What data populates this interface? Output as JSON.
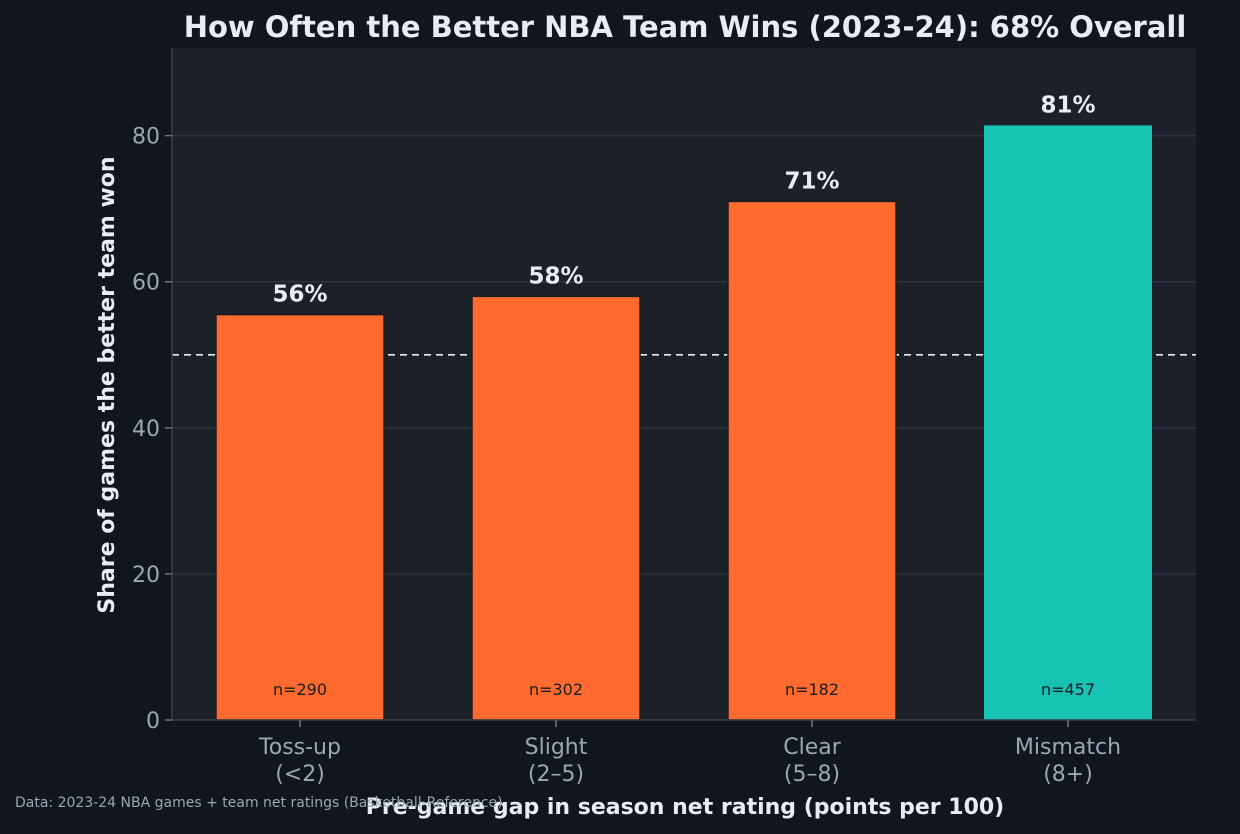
{
  "chart_data": {
    "type": "bar",
    "title": "How Often the Better NBA Team Wins (2023-24): 68% Overall",
    "xlabel": "Pre-game gap in season net rating (points per 100)",
    "ylabel": "Share of games the better team won",
    "ylim": [
      0,
      92
    ],
    "yticks": [
      0,
      20,
      40,
      60,
      80
    ],
    "reference_line": 50,
    "grid": true,
    "categories": [
      [
        "Toss-up",
        "(<2)"
      ],
      [
        "Slight",
        "(2–5)"
      ],
      [
        "Clear",
        "(5–8)"
      ],
      [
        "Mismatch",
        "(8+)"
      ]
    ],
    "values": [
      55.5,
      58,
      71,
      81.4
    ],
    "value_labels": [
      "56%",
      "58%",
      "71%",
      "81%"
    ],
    "counts": [
      "n=290",
      "n=302",
      "n=182",
      "n=457"
    ],
    "colors": {
      "bar_default": "#ff6b2e",
      "bar_highlight": "#19c3b3",
      "plot_bg": "#1d2029",
      "page_bg": "#11151c",
      "grid": "#2d3340",
      "text": "#e8edf3",
      "muted_text": "#9ba6b6"
    },
    "highlight_index": 3
  },
  "source_note": "Data: 2023-24 NBA games + team net ratings (Basketball-Reference)"
}
